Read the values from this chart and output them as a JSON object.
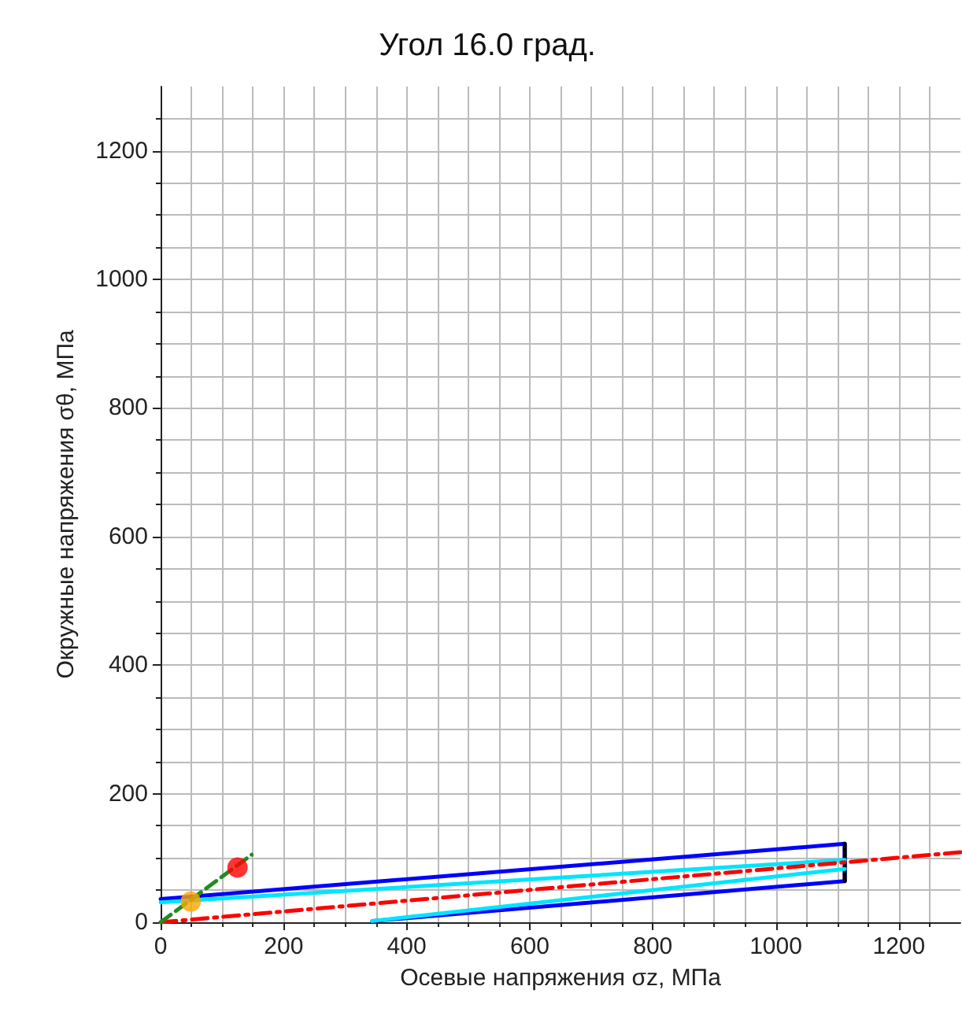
{
  "chart_data": {
    "type": "line",
    "title": "Угол 16.0 град.",
    "xlabel": "Осевые напряжения σz, МПа",
    "ylabel": "Окружные напряжения σθ, МПа",
    "xlim": [
      0,
      1300
    ],
    "ylim": [
      0,
      1300
    ],
    "xticks": [
      0,
      200,
      400,
      600,
      800,
      1000,
      1200
    ],
    "yticks": [
      0,
      200,
      400,
      600,
      800,
      1000,
      1200
    ],
    "grid": true,
    "series": [
      {
        "color": "#0000ff",
        "x": [
          0,
          1112,
          1112,
          344
        ],
        "values": [
          36,
          122,
          64,
          2
        ],
        "marker": "none",
        "line_style": "solid"
      },
      {
        "type": "line",
        "color": "#000000",
        "x": [
          1112,
          1112
        ],
        "values": [
          64,
          122
        ],
        "marker": "none",
        "line_style": "solid"
      },
      {
        "type": "line",
        "color": "#00e5ff",
        "x": [
          0,
          1112
        ],
        "values": [
          31,
          97
        ],
        "marker": "none",
        "line_style": "solid"
      },
      {
        "type": "line",
        "color": "#00e5ff",
        "x": [
          344,
          1112
        ],
        "values": [
          2,
          83
        ],
        "marker": "none",
        "line_style": "solid"
      },
      {
        "type": "line",
        "color": "#ff0000",
        "x": [
          0,
          1300
        ],
        "values": [
          0,
          109
        ],
        "marker": "none",
        "line_style": "dashdot"
      },
      {
        "type": "line",
        "color": "#228b22",
        "x": [
          0,
          148
        ],
        "values": [
          0,
          105
        ],
        "marker": "none",
        "line_style": "dashed"
      },
      {
        "type": "scatter",
        "color": "#ff0000",
        "x": [
          125
        ],
        "values": [
          85
        ],
        "marker": "circle"
      },
      {
        "type": "scatter",
        "color": "#ffa500",
        "x": [
          49
        ],
        "values": [
          32
        ],
        "marker": "circle"
      }
    ]
  }
}
